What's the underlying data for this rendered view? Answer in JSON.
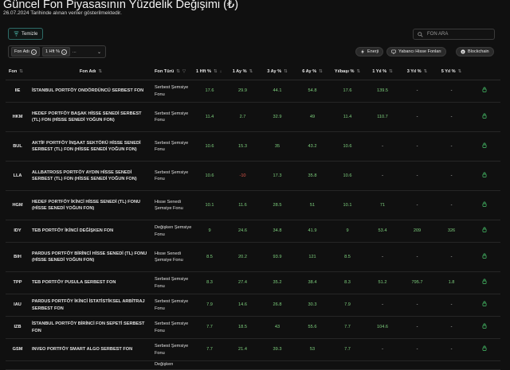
{
  "header": {
    "title": "Güncel Fon Piyasasının Yüzdelik Değişimi (₺)",
    "subtitle": "26.07.2024 Tarihinde alınan veriler gösterilmektedir."
  },
  "toolbar": {
    "clear_label": "Temizle",
    "search_placeholder": "FON ARA",
    "chips": [
      "Fon Adı",
      "1 Hft %"
    ],
    "select_more": "...",
    "pills": [
      "Enerji",
      "Yabancı Hisse Fonları",
      "Blockchain"
    ]
  },
  "table": {
    "headers": [
      "Fon",
      "Fon Adı",
      "Fon Türü",
      "1 Hft %",
      "1 Ay %",
      "3 Ay %",
      "6 Ay %",
      "Yılbaşı %",
      "1 Yıl %",
      "3 Yıl %",
      "5 Yıl %"
    ],
    "rows": [
      {
        "code": "IIE",
        "name": "İSTANBUL PORTFÖY ONDÖRDÜNCÜ SERBEST FON",
        "type": "Serbest Şemsiye Fonu",
        "v": [
          "17.6",
          "29.9",
          "44.1",
          "54.8",
          "17.6",
          "139.5",
          "-",
          "-"
        ]
      },
      {
        "code": "HKM",
        "name": "HEDEF PORTFÖY BAŞAK HİSSE SENEDİ SERBEST (TL) FON (HİSSE SENEDİ YOĞUN FON)",
        "type": "Serbest Şemsiye Fonu",
        "v": [
          "11.4",
          "2.7",
          "32.9",
          "49",
          "11.4",
          "110.7",
          "-",
          "-"
        ]
      },
      {
        "code": "BUL",
        "name": "AKTİF PORTFÖY İNŞAAT SEKTÖRÜ HİSSE SENEDİ SERBEST (TL) FON (HİSSE SENEDİ YOĞUN FON)",
        "type": "Serbest Şemsiye Fonu",
        "v": [
          "10.6",
          "15.3",
          "35",
          "43.2",
          "10.6",
          "-",
          "-",
          "-"
        ]
      },
      {
        "code": "LLA",
        "name": "ALLBATROSS PORTFÖY AYDIN HİSSE SENEDİ SERBEST (TL) FON (HİSSE SENEDİ YOĞUN FON)",
        "type": "Serbest Şemsiye Fonu",
        "v": [
          "10.6",
          "-10",
          "17.3",
          "35.8",
          "10.6",
          "-",
          "-",
          "-"
        ]
      },
      {
        "code": "HGM",
        "name": "HEDEF PORTFÖY İKİNCİ HİSSE SENEDİ (TL) FONU (HİSSE SENEDİ YOĞUN FON)",
        "type": "Hisse Senedi Şemsiye Fonu",
        "v": [
          "10.1",
          "11.6",
          "28.5",
          "51",
          "10.1",
          "71",
          "-",
          "-"
        ]
      },
      {
        "code": "IDY",
        "name": "TEB PORTFÖY İKİNCİ DEĞİŞKEN FON",
        "type": "Değişken Şemsiye Fonu",
        "v": [
          "9",
          "24.6",
          "34.8",
          "41.9",
          "9",
          "53.4",
          "209",
          "326"
        ]
      },
      {
        "code": "BIH",
        "name": "PARDUS PORTFÖY BİRİNCİ HİSSE SENEDİ (TL) FONU (HİSSE SENEDİ YOĞUN FON)",
        "type": "Hisse Senedi Şemsiye Fonu",
        "v": [
          "8.5",
          "20.2",
          "93.9",
          "121",
          "8.5",
          "-",
          "-",
          "-"
        ]
      },
      {
        "code": "TPP",
        "name": "TEB PORTFÖY PUSULA SERBEST FON",
        "type": "Serbest Şemsiye Fonu",
        "v": [
          "8.3",
          "27.4",
          "35.2",
          "38.4",
          "8.3",
          "51.2",
          "795.7",
          "1.8"
        ]
      },
      {
        "code": "IAU",
        "name": "PARDUS PORTFÖY İKİNCİ İSTATİSTİKSEL ARBİTRAJ SERBEST FON",
        "type": "Serbest Şemsiye Fonu",
        "v": [
          "7.9",
          "14.6",
          "26.8",
          "30.3",
          "7.9",
          "-",
          "-",
          "-"
        ]
      },
      {
        "code": "IZB",
        "name": "İSTANBUL PORTFÖY BİRİNCİ FON SEPETİ SERBEST FON",
        "type": "Serbest Şemsiye Fonu",
        "v": [
          "7.7",
          "18.5",
          "43",
          "55.6",
          "7.7",
          "104.6",
          "-",
          "-"
        ]
      },
      {
        "code": "GSM",
        "name": "INVEO PORTFÖY SMART ALGO SERBEST FON",
        "type": "Serbest Şemsiye Fonu",
        "v": [
          "7.7",
          "21.4",
          "39.3",
          "53",
          "7.7",
          "-",
          "-",
          "-"
        ]
      }
    ],
    "partial_row_type": "Değişken"
  },
  "colors": {
    "background": "#101010",
    "positive": "#7ed17e",
    "negative": "#e0584b",
    "accent": "#2d6a66",
    "lock": "#47c46a"
  }
}
